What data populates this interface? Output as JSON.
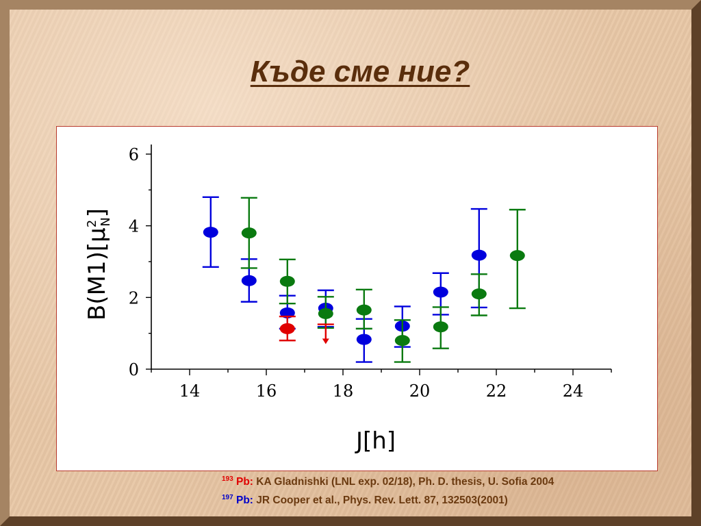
{
  "slide": {
    "title": "Къде сме ние?"
  },
  "references": [
    {
      "mass": "193",
      "element": "Pb:",
      "text": " KA Gladnishki (LNL exp. 02/18), Ph. D. thesis, U. Sofia 2004",
      "color": "#e00000"
    },
    {
      "mass": "197",
      "element": "Pb:",
      "text": " JR Cooper et al., Phys. Rev. Lett. 87, 132503(2001)",
      "color": "#0000c8"
    }
  ],
  "chart_data": {
    "type": "scatter",
    "xlabel": "J[h]",
    "ylabel": "B(M1)[μ",
    "ylabel_sup": "2",
    "ylabel_sub": "N",
    "ylabel_close": "]",
    "xlim": [
      13,
      25
    ],
    "ylim": [
      0,
      6
    ],
    "xticks": [
      14,
      16,
      18,
      20,
      22,
      24
    ],
    "yticks": [
      0,
      2,
      4,
      6
    ],
    "grid": false,
    "series": [
      {
        "color": "#0000dd",
        "points": [
          {
            "x": 14.55,
            "y": 3.82,
            "ylo": 2.85,
            "yhi": 4.8
          },
          {
            "x": 15.55,
            "y": 2.47,
            "ylo": 1.88,
            "yhi": 3.07
          },
          {
            "x": 16.55,
            "y": 1.57,
            "ylo": 1.13,
            "yhi": 2.05
          },
          {
            "x": 17.55,
            "y": 1.7,
            "ylo": 1.18,
            "yhi": 2.2
          },
          {
            "x": 18.55,
            "y": 0.83,
            "ylo": 0.2,
            "yhi": 1.4
          },
          {
            "x": 19.55,
            "y": 1.2,
            "ylo": 0.62,
            "yhi": 1.75
          },
          {
            "x": 20.55,
            "y": 2.15,
            "ylo": 1.52,
            "yhi": 2.68
          },
          {
            "x": 21.55,
            "y": 3.18,
            "ylo": 1.72,
            "yhi": 4.47
          }
        ]
      },
      {
        "color": "#0a7a10",
        "points": [
          {
            "x": 15.55,
            "y": 3.8,
            "ylo": 2.82,
            "yhi": 4.78
          },
          {
            "x": 16.55,
            "y": 2.45,
            "ylo": 1.83,
            "yhi": 3.06
          },
          {
            "x": 17.55,
            "y": 1.55,
            "ylo": 1.15,
            "yhi": 2.02
          },
          {
            "x": 18.55,
            "y": 1.65,
            "ylo": 1.13,
            "yhi": 2.22
          },
          {
            "x": 19.55,
            "y": 0.8,
            "ylo": 0.2,
            "yhi": 1.37
          },
          {
            "x": 20.55,
            "y": 1.18,
            "ylo": 0.58,
            "yhi": 1.73
          },
          {
            "x": 21.55,
            "y": 2.1,
            "ylo": 1.5,
            "yhi": 2.65
          },
          {
            "x": 22.55,
            "y": 3.17,
            "ylo": 1.7,
            "yhi": 4.45
          }
        ]
      },
      {
        "color": "#e00000",
        "points": [
          {
            "x": 16.55,
            "y": 1.13,
            "ylo": 0.8,
            "yhi": 1.47
          }
        ],
        "upper_limits": [
          {
            "x": 17.55,
            "y": 1.25,
            "ylo": 0.7
          }
        ]
      }
    ]
  }
}
